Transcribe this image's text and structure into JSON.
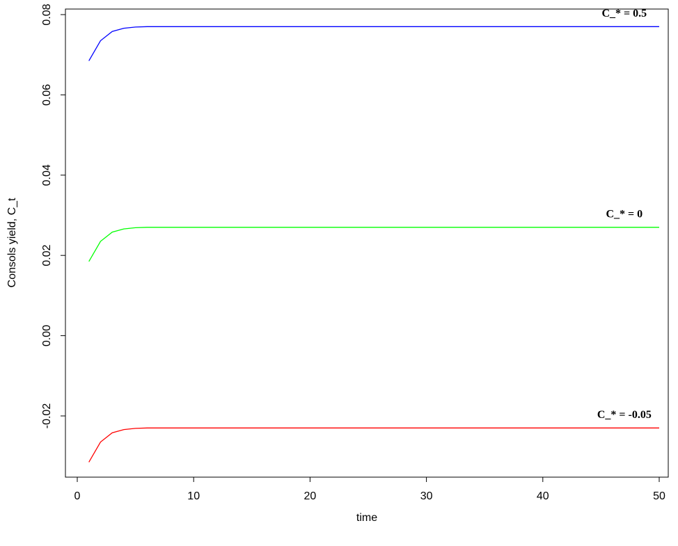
{
  "chart_data": {
    "type": "line",
    "title": "",
    "xlabel": "time",
    "ylabel": "Consols yield, C_t",
    "xlim": [
      0,
      50
    ],
    "ylim": [
      -0.035,
      0.08
    ],
    "xticks": [
      0,
      10,
      20,
      30,
      40,
      50
    ],
    "xtick_labels": [
      "0",
      "10",
      "20",
      "30",
      "40",
      "50"
    ],
    "yticks": [
      -0.02,
      0.0,
      0.02,
      0.04,
      0.06,
      0.08
    ],
    "ytick_labels": [
      "-0.02",
      "0.00",
      "0.02",
      "0.04",
      "0.06",
      "0.08"
    ],
    "grid": false,
    "legend": "none",
    "annotations": [
      {
        "text": "C_* = 0.5",
        "x": 47,
        "y": 0.0795
      },
      {
        "text": "C_* = 0",
        "x": 47,
        "y": 0.0295
      },
      {
        "text": "C_* = -0.05",
        "x": 47,
        "y": -0.0205
      }
    ],
    "series": [
      {
        "color": "#0000FF",
        "x": [
          1,
          2,
          3,
          4,
          5,
          6,
          7,
          8,
          9,
          10,
          15,
          20,
          25,
          30,
          35,
          40,
          45,
          50
        ],
        "values": [
          0.0685,
          0.0735,
          0.0758,
          0.0766,
          0.0769,
          0.077,
          0.077,
          0.077,
          0.077,
          0.077,
          0.077,
          0.077,
          0.077,
          0.077,
          0.077,
          0.077,
          0.077,
          0.077
        ]
      },
      {
        "color": "#00FF00",
        "x": [
          1,
          2,
          3,
          4,
          5,
          6,
          7,
          8,
          9,
          10,
          15,
          20,
          25,
          30,
          35,
          40,
          45,
          50
        ],
        "values": [
          0.0185,
          0.0235,
          0.0258,
          0.0266,
          0.0269,
          0.027,
          0.027,
          0.027,
          0.027,
          0.027,
          0.027,
          0.027,
          0.027,
          0.027,
          0.027,
          0.027,
          0.027,
          0.027
        ]
      },
      {
        "color": "#FF0000",
        "x": [
          1,
          2,
          3,
          4,
          5,
          6,
          7,
          8,
          9,
          10,
          15,
          20,
          25,
          30,
          35,
          40,
          45,
          50
        ],
        "values": [
          -0.0315,
          -0.0265,
          -0.0242,
          -0.0234,
          -0.0231,
          -0.023,
          -0.023,
          -0.023,
          -0.023,
          -0.023,
          -0.023,
          -0.023,
          -0.023,
          -0.023,
          -0.023,
          -0.023,
          -0.023,
          -0.023
        ]
      }
    ]
  }
}
